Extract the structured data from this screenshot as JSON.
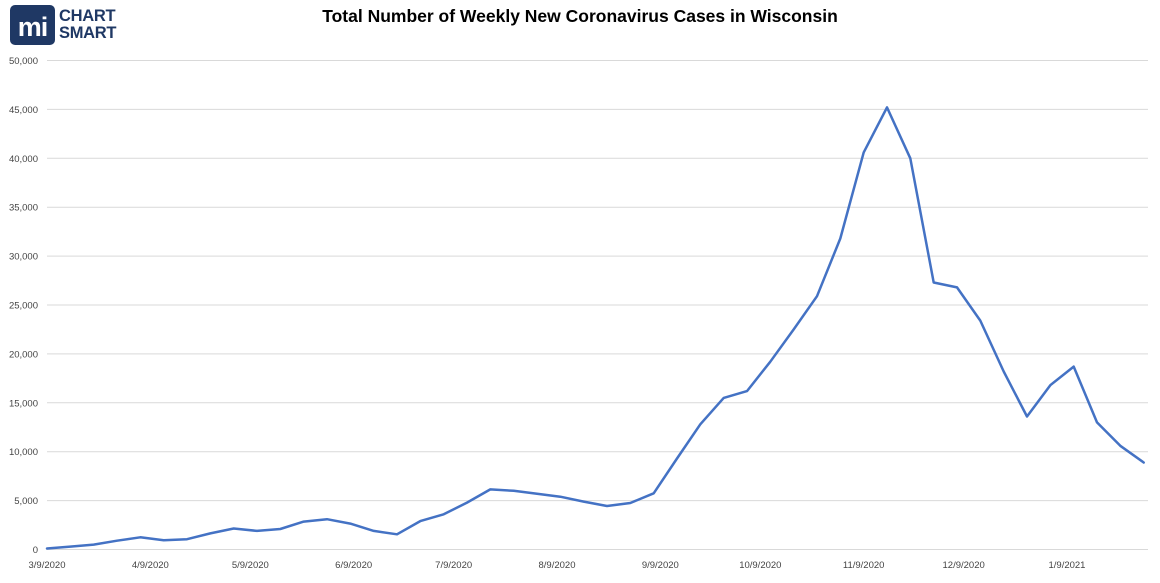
{
  "logo": {
    "mark": "mi",
    "line1": "CHART",
    "line2": "SMART",
    "color": "#1f3864"
  },
  "chart_data": {
    "type": "line",
    "title": "Total Number of Weekly New Coronavirus Cases in Wisconsin",
    "xlabel": "",
    "ylabel": "",
    "ylim": [
      0,
      50000
    ],
    "y_tick_step": 5000,
    "y_tick_labels": [
      "0",
      "5,000",
      "10,000",
      "15,000",
      "20,000",
      "25,000",
      "30,000",
      "35,000",
      "40,000",
      "45,000",
      "50,000"
    ],
    "x_tick_labels": [
      "3/9/2020",
      "4/9/2020",
      "5/9/2020",
      "6/9/2020",
      "7/9/2020",
      "8/9/2020",
      "9/9/2020",
      "10/9/2020",
      "11/9/2020",
      "12/9/2020",
      "1/9/2021"
    ],
    "grid": true,
    "legend": "none",
    "line_color": "#4472C4",
    "grid_color": "#D9D9D9",
    "label_color": "#444444",
    "series_name": "Weekly new coronavirus cases",
    "x": [
      "3/9/2020",
      "3/16/2020",
      "3/23/2020",
      "3/30/2020",
      "4/6/2020",
      "4/13/2020",
      "4/20/2020",
      "4/27/2020",
      "5/4/2020",
      "5/11/2020",
      "5/18/2020",
      "5/25/2020",
      "6/1/2020",
      "6/8/2020",
      "6/15/2020",
      "6/22/2020",
      "6/29/2020",
      "7/6/2020",
      "7/13/2020",
      "7/20/2020",
      "7/27/2020",
      "8/3/2020",
      "8/10/2020",
      "8/17/2020",
      "8/24/2020",
      "8/31/2020",
      "9/7/2020",
      "9/14/2020",
      "9/21/2020",
      "9/28/2020",
      "10/5/2020",
      "10/12/2020",
      "10/19/2020",
      "10/26/2020",
      "11/2/2020",
      "11/9/2020",
      "11/16/2020",
      "11/23/2020",
      "11/30/2020",
      "12/7/2020",
      "12/14/2020",
      "12/21/2020",
      "12/28/2020",
      "1/4/2021",
      "1/11/2021",
      "1/18/2021",
      "1/25/2021",
      "2/1/2021"
    ],
    "values": [
      100,
      300,
      500,
      900,
      1250,
      950,
      1050,
      1650,
      2150,
      1900,
      2100,
      2850,
      3100,
      2650,
      1900,
      1550,
      2900,
      3600,
      4800,
      6150,
      6000,
      5700,
      5400,
      4900,
      4450,
      4750,
      5750,
      9300,
      12800,
      15500,
      16200,
      19200,
      22500,
      25900,
      31800,
      40600,
      45200,
      40000,
      27300,
      26800,
      23400,
      18200,
      13600,
      16800,
      18700,
      13000,
      10600,
      8900
    ]
  }
}
